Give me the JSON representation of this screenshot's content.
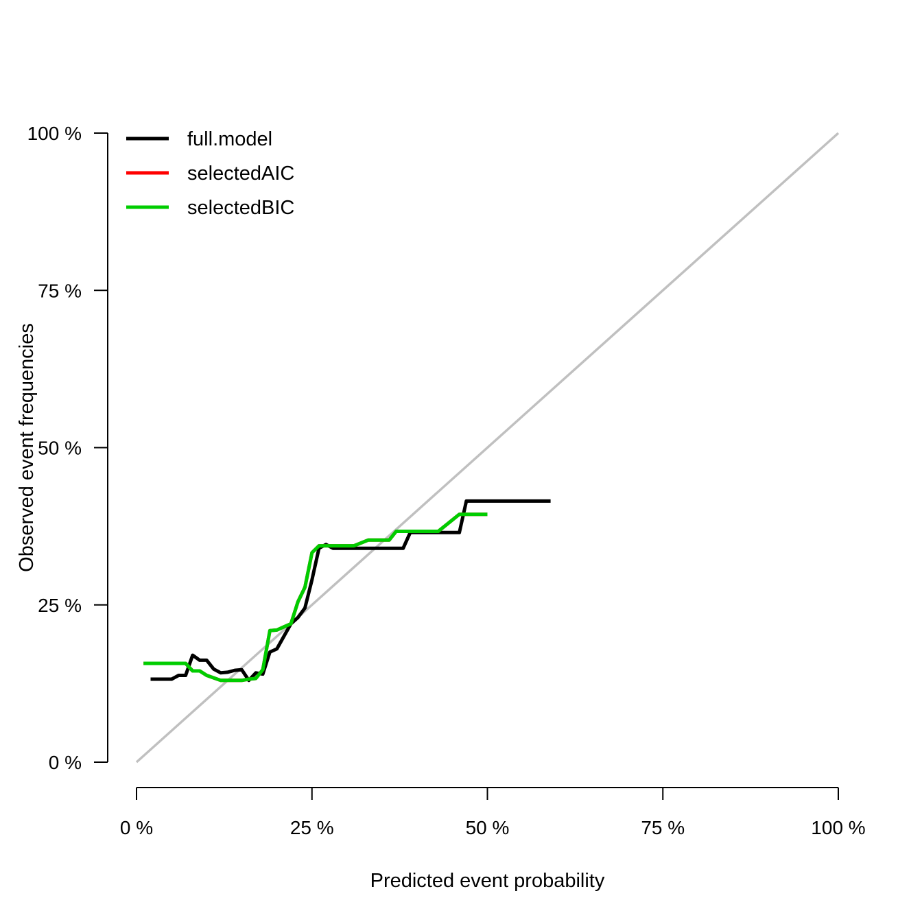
{
  "chart_data": {
    "type": "line",
    "title": "",
    "xlabel": "Predicted event probability",
    "ylabel": "Observed event frequencies",
    "xlim": [
      0,
      100
    ],
    "ylim": [
      0,
      100
    ],
    "x_ticks": [
      "0 %",
      "25 %",
      "50 %",
      "75 %",
      "100 %"
    ],
    "y_ticks": [
      "0 %",
      "25 %",
      "50 %",
      "75 %",
      "100 %"
    ],
    "grid": false,
    "legend_position": "top-left",
    "reference_line": {
      "x": [
        0,
        100
      ],
      "y": [
        0,
        100
      ],
      "color": "#c0c0c0"
    },
    "series": [
      {
        "name": "full.model",
        "color": "#000000",
        "x": [
          2,
          3,
          4,
          5,
          6,
          7,
          8,
          9,
          10,
          11,
          12,
          13,
          14,
          15,
          16,
          17,
          18,
          19,
          20,
          21,
          22,
          23,
          24,
          25,
          26,
          27,
          28,
          30,
          32,
          34,
          36,
          38,
          39,
          41,
          43,
          44,
          46,
          47,
          49,
          52,
          55,
          57,
          59
        ],
        "y": [
          13.2,
          13.2,
          13.2,
          13.2,
          13.8,
          13.8,
          17.0,
          16.2,
          16.2,
          14.8,
          14.2,
          14.3,
          14.6,
          14.7,
          13.0,
          14.2,
          14.0,
          17.5,
          18.0,
          20.0,
          22.0,
          23.0,
          24.5,
          29.0,
          34.0,
          34.6,
          34.0,
          34.0,
          34.0,
          34.0,
          34.0,
          34.0,
          36.5,
          36.5,
          36.5,
          36.5,
          36.5,
          41.5,
          41.5,
          41.5,
          41.5,
          41.5,
          41.5
        ]
      },
      {
        "name": "selectedAIC",
        "color": "#ff0000",
        "x": [
          1,
          3,
          5,
          7,
          8,
          9,
          10,
          11,
          12,
          13,
          14,
          15,
          16,
          17,
          18,
          19,
          20,
          21,
          22,
          23,
          24,
          25,
          26,
          27,
          29,
          31,
          33,
          36,
          37,
          39,
          41,
          43,
          46,
          48,
          50
        ],
        "y": [
          15.7,
          15.7,
          15.7,
          15.7,
          14.5,
          14.5,
          13.8,
          13.4,
          13.0,
          13.0,
          13.0,
          13.0,
          13.2,
          13.3,
          14.7,
          20.9,
          21.0,
          21.5,
          22.0,
          25.5,
          27.8,
          33.3,
          34.4,
          34.4,
          34.4,
          34.4,
          35.3,
          35.3,
          36.7,
          36.7,
          36.7,
          36.7,
          39.4,
          39.4,
          39.4
        ]
      },
      {
        "name": "selectedBIC",
        "color": "#00cd00",
        "x": [
          1,
          3,
          5,
          7,
          8,
          9,
          10,
          11,
          12,
          13,
          14,
          15,
          16,
          17,
          18,
          19,
          20,
          21,
          22,
          23,
          24,
          25,
          26,
          27,
          29,
          31,
          33,
          36,
          37,
          39,
          41,
          43,
          46,
          48,
          50
        ],
        "y": [
          15.7,
          15.7,
          15.7,
          15.7,
          14.5,
          14.5,
          13.8,
          13.4,
          13.0,
          13.0,
          13.0,
          13.0,
          13.2,
          13.3,
          14.7,
          20.9,
          21.0,
          21.5,
          22.0,
          25.5,
          27.8,
          33.3,
          34.4,
          34.4,
          34.4,
          34.4,
          35.3,
          35.3,
          36.7,
          36.7,
          36.7,
          36.7,
          39.4,
          39.4,
          39.4
        ]
      }
    ]
  }
}
